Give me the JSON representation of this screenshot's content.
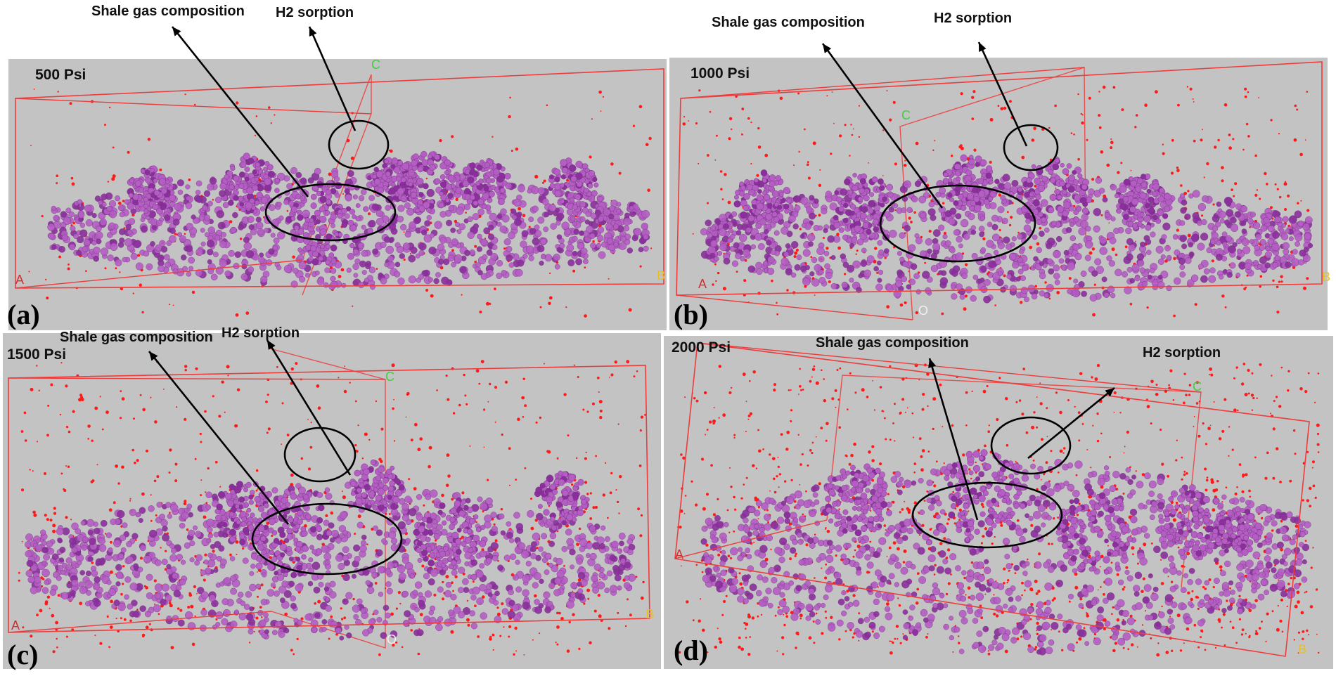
{
  "figure": {
    "colors": {
      "background": "#c3c3c3",
      "box": "#ee3b3b",
      "molecule": "#b45ec4",
      "molecule_dark": "#8a2f9c",
      "hydrogen": "#ff1a1a",
      "annotation": "#000000"
    },
    "panels": [
      {
        "label": "(a)",
        "pressure": "500 Psi",
        "callout_gas": "Shale gas composition",
        "callout_h2": "H2 sorption",
        "axes": {
          "a": "A",
          "b": "B",
          "c": "C"
        },
        "h2_density": 140
      },
      {
        "label": "(b)",
        "pressure": "1000 Psi",
        "callout_gas": "Shale gas composition",
        "callout_h2": "H2 sorption",
        "axes": {
          "a": "A",
          "b": "B",
          "c": "C",
          "o": "O"
        },
        "h2_density": 320
      },
      {
        "label": "(c)",
        "pressure": "1500 Psi",
        "callout_gas": "Shale gas composition",
        "callout_h2": "H2 sorption",
        "axes": {
          "a": "A",
          "b": "B",
          "c": "C",
          "o": "O"
        },
        "h2_density": 520
      },
      {
        "label": "(d)",
        "pressure": "2000 Psi",
        "callout_gas": "Shale gas composition",
        "callout_h2": "H2 sorption",
        "axes": {
          "a": "A",
          "b": "B",
          "c": "C"
        },
        "h2_density": 900
      }
    ]
  }
}
